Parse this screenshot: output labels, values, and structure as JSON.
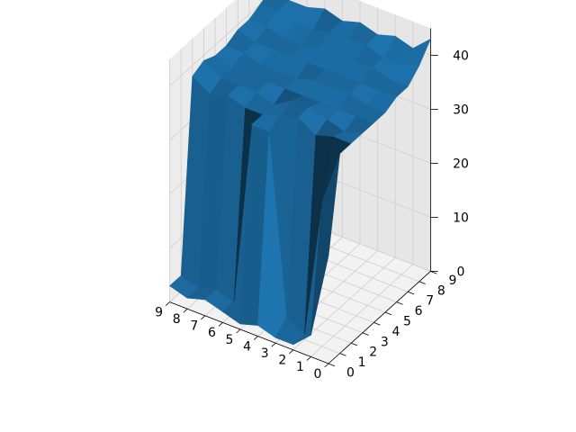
{
  "chart_data": {
    "type": "surface3d",
    "x": [
      0,
      1,
      2,
      3,
      4,
      5,
      6,
      7,
      8,
      9
    ],
    "y": [
      0,
      1,
      2,
      3,
      4,
      5,
      6,
      7,
      8,
      9
    ],
    "z": [
      [
        20,
        37,
        37,
        37,
        37,
        37,
        38,
        38,
        40,
        43
      ],
      [
        4,
        27,
        37,
        36,
        37,
        37,
        38,
        38,
        39,
        40
      ],
      [
        1,
        1,
        36,
        37,
        37,
        38,
        38,
        39,
        39,
        41
      ],
      [
        1,
        3,
        38,
        38,
        37,
        38,
        38,
        39,
        40,
        40
      ],
      [
        2,
        36,
        37,
        38,
        37,
        38,
        38,
        39,
        40,
        41
      ],
      [
        1,
        36,
        36,
        36,
        37,
        37,
        38,
        39,
        40,
        40
      ],
      [
        2,
        2,
        36,
        37,
        37,
        37,
        38,
        38,
        39,
        41
      ],
      [
        3,
        3,
        37,
        37,
        37,
        37,
        38,
        38,
        39,
        40
      ],
      [
        2,
        2,
        36,
        37,
        37,
        38,
        38,
        39,
        40,
        40
      ],
      [
        3,
        3,
        38,
        39,
        38,
        38,
        39,
        39,
        40,
        41
      ]
    ],
    "x_ticks": [
      "0",
      "1",
      "2",
      "3",
      "4",
      "5",
      "6",
      "7",
      "8",
      "9"
    ],
    "y_ticks": [
      "0",
      "1",
      "2",
      "3",
      "4",
      "5",
      "6",
      "7",
      "8",
      "9"
    ],
    "z_ticks": [
      "0",
      "10",
      "20",
      "30",
      "40"
    ],
    "xlim": [
      0,
      9
    ],
    "ylim": [
      0,
      9
    ],
    "zlim": [
      0,
      45
    ],
    "grid": true,
    "title": "",
    "xlabel": "",
    "ylabel": "",
    "zlabel": "",
    "colors": {
      "surface": "#1f77b4",
      "pane": "#f2f2f2",
      "grid": "#cfcfcf"
    }
  }
}
